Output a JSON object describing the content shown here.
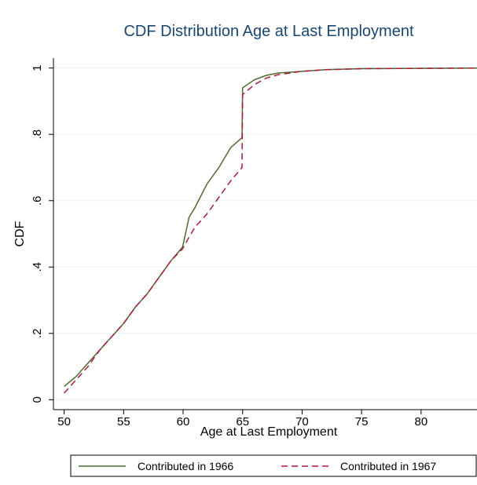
{
  "chart_data": {
    "type": "line",
    "title": "CDF Distribution Age at Last Employment",
    "x_label": "Age at Last Employment",
    "y_label": "CDF",
    "x": [
      50,
      51,
      52,
      53,
      54,
      55,
      56,
      57,
      58,
      59,
      59.95,
      60.5,
      61,
      62,
      63,
      64,
      64.95,
      65,
      66,
      67,
      68,
      70,
      72,
      75,
      80,
      84.7
    ],
    "series": [
      {
        "name": "Contributed in 1966",
        "color": "#4e6b2c",
        "dash": false,
        "values": [
          0.04,
          0.07,
          0.11,
          0.15,
          0.19,
          0.23,
          0.28,
          0.32,
          0.37,
          0.42,
          0.46,
          0.55,
          0.58,
          0.65,
          0.7,
          0.76,
          0.79,
          0.94,
          0.965,
          0.978,
          0.985,
          0.99,
          0.995,
          0.998,
          0.999,
          1
        ]
      },
      {
        "name": "Contributed in 1967",
        "color": "#b0173c",
        "dash": true,
        "values": [
          0.02,
          0.06,
          0.1,
          0.15,
          0.19,
          0.23,
          0.28,
          0.32,
          0.37,
          0.42,
          0.455,
          0.49,
          0.52,
          0.56,
          0.61,
          0.66,
          0.7,
          0.92,
          0.95,
          0.97,
          0.98,
          0.99,
          0.995,
          0.998,
          0.999,
          1
        ]
      }
    ],
    "xlim": [
      49.1,
      84.7
    ],
    "ylim": [
      -0.03,
      1.03
    ],
    "xticks": [
      50,
      55,
      60,
      65,
      70,
      75,
      80
    ],
    "yticks": [
      0,
      {
        "value": 0.2,
        "label": ".2"
      },
      {
        "value": 0.4,
        "label": ".4"
      },
      {
        "value": 0.6,
        "label": ".6"
      },
      {
        "value": 0.8,
        "label": ".8"
      },
      1
    ],
    "grid": true,
    "legend": "bottom"
  }
}
